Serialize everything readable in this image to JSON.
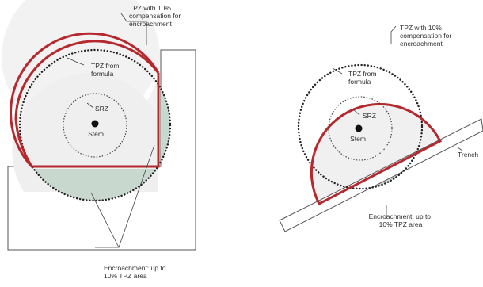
{
  "left_panel": {
    "tpz_compensation_label": [
      "TPZ with 10%",
      "compensation for",
      "encroachment"
    ],
    "tpz_formula_label": [
      "TPZ from",
      "formula"
    ],
    "srz_label": "SRZ",
    "stem_label": "Stem",
    "encroachment_label": [
      "Encroachment: up to",
      "10% TPZ area"
    ]
  },
  "right_panel": {
    "tpz_compensation_label": [
      "TPZ with 10%",
      "compensation for",
      "encroachment"
    ],
    "tpz_formula_label": [
      "TPZ from",
      "formula"
    ],
    "srz_label": "SRZ",
    "stem_label": "Stem",
    "trench_label": "Trench",
    "encroachment_label": [
      "Encroachment: up to",
      "10% TPZ area"
    ]
  },
  "colors": {
    "tpz_compensation_outline": "#b5282e",
    "encroachment_fill": "#c9d8cf",
    "tpz_fill": "#eeeeee",
    "structure_outline": "#555555"
  }
}
